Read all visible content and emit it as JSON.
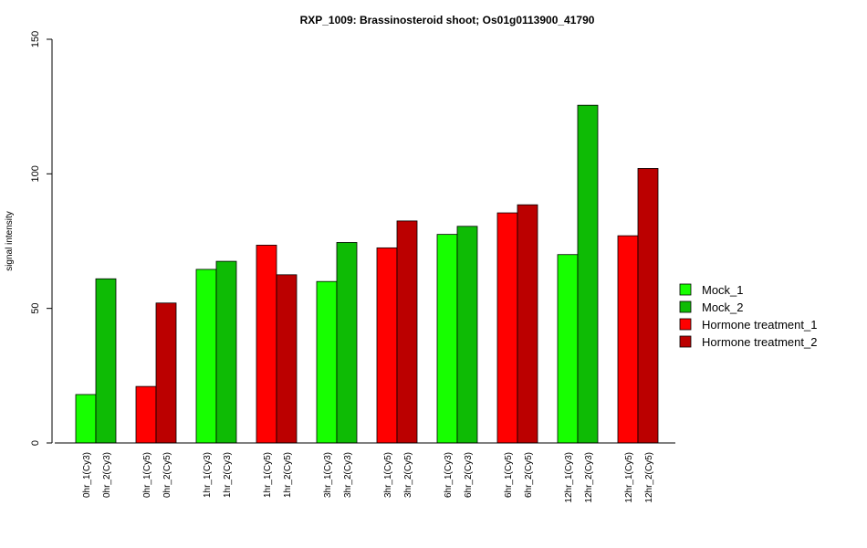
{
  "chart_data": {
    "type": "bar",
    "title": "RXP_1009: Brassinosteroid shoot; Os01g0113900_41790",
    "xlabel": "",
    "ylabel": "signal intensity",
    "ylim": [
      0,
      150
    ],
    "yticks": [
      0,
      50,
      100,
      150
    ],
    "grid": false,
    "legend_position": "right",
    "legend": [
      {
        "name": "Mock_1",
        "color": "#17ff00"
      },
      {
        "name": "Mock_2",
        "color": "#0ebb05"
      },
      {
        "name": "Hormone treatment_1",
        "color": "#ff0000"
      },
      {
        "name": "Hormone treatment_2",
        "color": "#bb0000"
      }
    ],
    "bars": [
      {
        "label": "0hr_1(Cy3)",
        "value": 18,
        "color": "#17ff00"
      },
      {
        "label": "0hr_2(Cy3)",
        "value": 61,
        "color": "#0ebb05"
      },
      {
        "label": "0hr_1(Cy5)",
        "value": 21,
        "color": "#ff0000"
      },
      {
        "label": "0hr_2(Cy5)",
        "value": 52,
        "color": "#bb0000"
      },
      {
        "label": "1hr_1(Cy3)",
        "value": 64.5,
        "color": "#17ff00"
      },
      {
        "label": "1hr_2(Cy3)",
        "value": 67.5,
        "color": "#0ebb05"
      },
      {
        "label": "1hr_1(Cy5)",
        "value": 73.5,
        "color": "#ff0000"
      },
      {
        "label": "1hr_2(Cy5)",
        "value": 62.5,
        "color": "#bb0000"
      },
      {
        "label": "3hr_1(Cy3)",
        "value": 60,
        "color": "#17ff00"
      },
      {
        "label": "3hr_2(Cy3)",
        "value": 74.5,
        "color": "#0ebb05"
      },
      {
        "label": "3hr_1(Cy5)",
        "value": 72.5,
        "color": "#ff0000"
      },
      {
        "label": "3hr_2(Cy5)",
        "value": 82.5,
        "color": "#bb0000"
      },
      {
        "label": "6hr_1(Cy3)",
        "value": 77.5,
        "color": "#17ff00"
      },
      {
        "label": "6hr_2(Cy3)",
        "value": 80.5,
        "color": "#0ebb05"
      },
      {
        "label": "6hr_1(Cy5)",
        "value": 85.5,
        "color": "#ff0000"
      },
      {
        "label": "6hr_2(Cy5)",
        "value": 88.5,
        "color": "#bb0000"
      },
      {
        "label": "12hr_1(Cy3)",
        "value": 70,
        "color": "#17ff00"
      },
      {
        "label": "12hr_2(Cy3)",
        "value": 125.5,
        "color": "#0ebb05"
      },
      {
        "label": "12hr_1(Cy5)",
        "value": 77,
        "color": "#ff0000"
      },
      {
        "label": "12hr_2(Cy5)",
        "value": 102,
        "color": "#bb0000"
      }
    ]
  }
}
